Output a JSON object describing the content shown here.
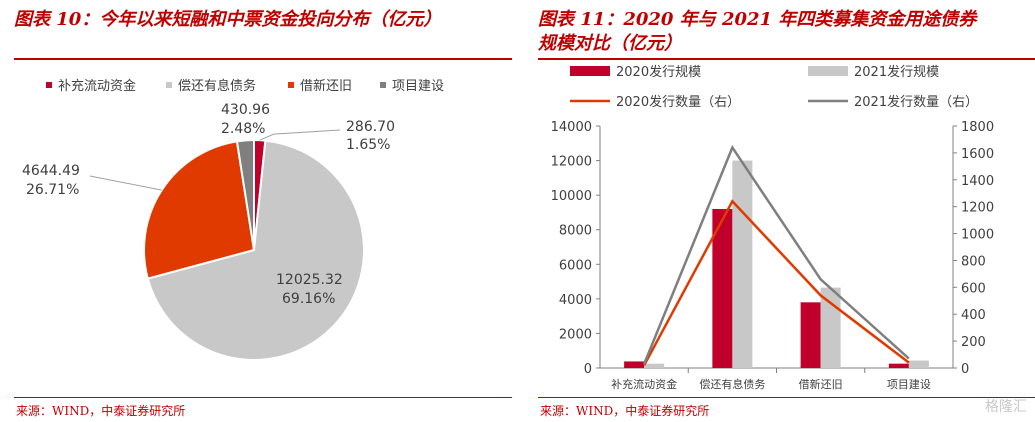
{
  "left_panel": {
    "title": "图表 10：今年以来短融和中票资金投向分布（亿元）",
    "source": "来源：WIND，中泰证券研究所"
  },
  "right_panel": {
    "title_line1": "图表 11：2020 年与 2021 年四类募集资金用途债券",
    "title_line2": "规模对比（亿元）",
    "source": "来源：WIND，中泰证券研究所"
  },
  "watermark": "格隆汇",
  "chart_data": [
    {
      "type": "pie",
      "title": "今年以来短融和中票资金投向分布（亿元）",
      "categories": [
        "补充流动资金",
        "偿还有息债务",
        "借新还旧",
        "项目建设"
      ],
      "values": [
        286.7,
        12025.32,
        4644.49,
        430.96
      ],
      "value_labels": [
        "286.70",
        "12025.32",
        "4644.49",
        "430.96"
      ],
      "percent_labels": [
        "1.65%",
        "69.16%",
        "26.71%",
        "2.48%"
      ],
      "colors": [
        "#c0002a",
        "#c8c8c8",
        "#e03a00",
        "#7f7f7f"
      ],
      "legend": "top"
    },
    {
      "type": "bar",
      "title": "2020 年与 2021 年四类募集资金用途债券规模对比（亿元）",
      "categories": [
        "补充流动资金",
        "偿还有息债务",
        "借新还旧",
        "项目建设"
      ],
      "series": [
        {
          "name": "2020发行规模",
          "kind": "bar",
          "axis": "left",
          "color": "#c0002a",
          "values": [
            380,
            9200,
            3800,
            250
          ]
        },
        {
          "name": "2021发行规模",
          "kind": "bar",
          "axis": "left",
          "color": "#c8c8c8",
          "values": [
            250,
            12000,
            4650,
            430
          ]
        },
        {
          "name": "2020发行数量（右）",
          "kind": "line",
          "axis": "right",
          "color": "#e03a00",
          "values": [
            20,
            1240,
            540,
            40
          ]
        },
        {
          "name": "2021发行数量（右）",
          "kind": "line",
          "axis": "right",
          "color": "#7f7f7f",
          "values": [
            30,
            1640,
            660,
            70
          ]
        }
      ],
      "ylim_left": [
        0,
        14000
      ],
      "yticks_left": [
        "0",
        "2000",
        "4000",
        "6000",
        "8000",
        "10000",
        "12000",
        "14000"
      ],
      "ylim_right": [
        0,
        1800
      ],
      "yticks_right": [
        "0",
        "200",
        "400",
        "600",
        "800",
        "1000",
        "1200",
        "1400",
        "1600",
        "1800"
      ],
      "legend": "top",
      "grid": false
    }
  ]
}
